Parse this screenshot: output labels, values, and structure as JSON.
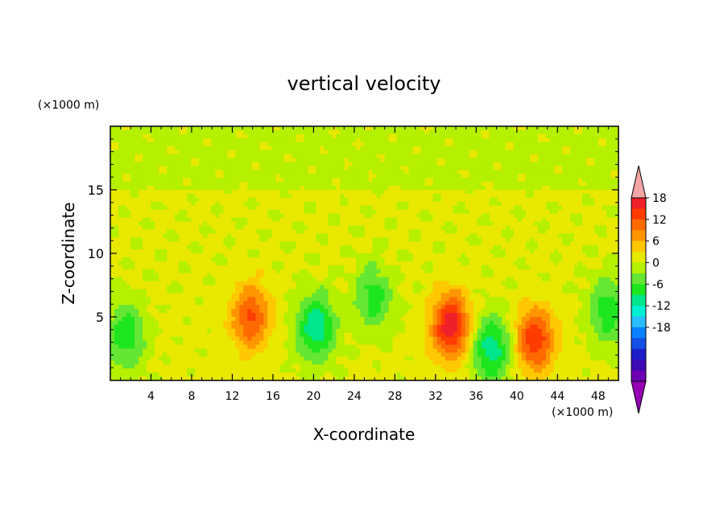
{
  "chart_data": {
    "type": "heatmap",
    "title": "vertical velocity",
    "xlabel": "X-coordinate",
    "ylabel": "Z-coordinate",
    "x_unit": "(×1000 m)",
    "y_unit": "(×1000 m)",
    "xlim": [
      0,
      50
    ],
    "ylim": [
      0,
      20
    ],
    "x_ticks": [
      4,
      8,
      12,
      16,
      20,
      24,
      28,
      32,
      36,
      40,
      44,
      48
    ],
    "y_ticks": [
      5,
      10,
      15
    ],
    "colorbar": {
      "ticks": [
        18,
        12,
        6,
        0,
        -6,
        -12,
        -18
      ],
      "colors": [
        "#f4a6a6",
        "#f0202a",
        "#ff3c00",
        "#ff6a00",
        "#ff9600",
        "#ffc800",
        "#e8e800",
        "#b4f000",
        "#64e632",
        "#1ee61e",
        "#00e68c",
        "#00f0d2",
        "#28beff",
        "#0a82ff",
        "#1450e6",
        "#1e1ec8",
        "#3c0ab4",
        "#6e00b4",
        "#9600b4"
      ],
      "range": [
        -21,
        21
      ],
      "step": 3
    },
    "features": [
      {
        "x": 1.5,
        "z": 3.5,
        "w": -9
      },
      {
        "x": 13.8,
        "z": 5.0,
        "w": 12
      },
      {
        "x": 20.2,
        "z": 4.2,
        "w": -12
      },
      {
        "x": 25.9,
        "z": 6.5,
        "w": -8
      },
      {
        "x": 33.5,
        "z": 4.3,
        "w": 17
      },
      {
        "x": 37.5,
        "z": 2.5,
        "w": -12
      },
      {
        "x": 41.8,
        "z": 3.2,
        "w": 14
      },
      {
        "x": 49.0,
        "z": 5.5,
        "w": -9
      }
    ]
  }
}
